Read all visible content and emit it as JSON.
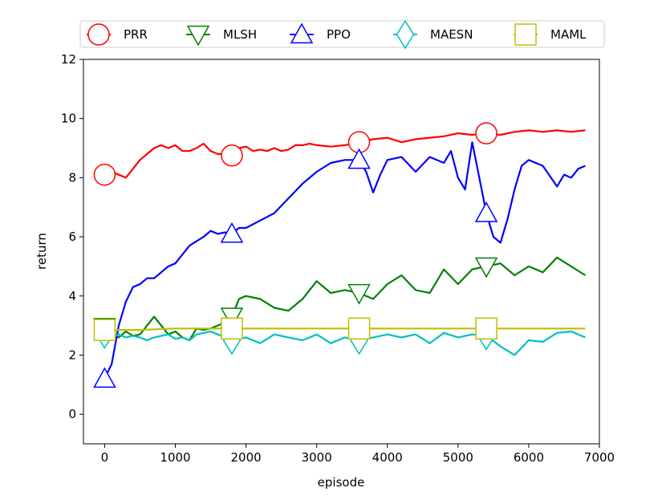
{
  "chart_data": {
    "type": "line",
    "title": "",
    "xlabel": "episode",
    "ylabel": "return",
    "xlim": [
      -300,
      7000
    ],
    "ylim": [
      -1,
      12
    ],
    "xticks": [
      0,
      1000,
      2000,
      3000,
      4000,
      5000,
      6000,
      7000
    ],
    "yticks": [
      0,
      2,
      4,
      6,
      8,
      10,
      12
    ],
    "grid": false,
    "legend_position": "top",
    "series": [
      {
        "name": "PRR",
        "color": "#ff0000",
        "marker": "circle",
        "marker_x": [
          0,
          1800,
          3600,
          5400
        ],
        "x": [
          0,
          100,
          200,
          300,
          400,
          500,
          600,
          700,
          800,
          900,
          1000,
          1100,
          1200,
          1300,
          1400,
          1500,
          1600,
          1700,
          1800,
          1900,
          2000,
          2100,
          2200,
          2300,
          2400,
          2500,
          2600,
          2700,
          2800,
          2900,
          3000,
          3200,
          3400,
          3600,
          3800,
          4000,
          4200,
          4400,
          4600,
          4800,
          5000,
          5200,
          5400,
          5600,
          5800,
          6000,
          6200,
          6400,
          6600,
          6800
        ],
        "y": [
          8.1,
          8.2,
          8.1,
          8.0,
          8.3,
          8.6,
          8.8,
          9.0,
          9.1,
          9.0,
          9.1,
          8.9,
          8.9,
          9.0,
          9.15,
          8.9,
          8.8,
          8.8,
          8.75,
          9.0,
          9.05,
          8.9,
          8.95,
          8.9,
          9.0,
          8.9,
          8.95,
          9.1,
          9.1,
          9.15,
          9.1,
          9.05,
          9.1,
          9.2,
          9.3,
          9.35,
          9.2,
          9.3,
          9.35,
          9.4,
          9.5,
          9.45,
          9.5,
          9.45,
          9.55,
          9.6,
          9.55,
          9.6,
          9.55,
          9.6
        ]
      },
      {
        "name": "MLSH",
        "color": "#008000",
        "marker": "triangle-down",
        "marker_x": [
          0,
          1800,
          3600,
          5400
        ],
        "x": [
          0,
          100,
          200,
          300,
          400,
          500,
          600,
          700,
          800,
          900,
          1000,
          1100,
          1200,
          1300,
          1400,
          1500,
          1600,
          1700,
          1800,
          1900,
          2000,
          2200,
          2400,
          2600,
          2800,
          3000,
          3200,
          3400,
          3600,
          3800,
          4000,
          4200,
          4400,
          4600,
          4800,
          5000,
          5200,
          5400,
          5600,
          5800,
          6000,
          6200,
          6400,
          6600,
          6800
        ],
        "y": [
          2.95,
          2.7,
          2.6,
          2.8,
          2.65,
          2.7,
          3.0,
          3.3,
          3.0,
          2.7,
          2.8,
          2.6,
          2.5,
          2.9,
          2.85,
          2.9,
          3.0,
          3.1,
          3.3,
          3.9,
          4.0,
          3.9,
          3.6,
          3.5,
          3.9,
          4.5,
          4.1,
          4.2,
          4.1,
          3.9,
          4.4,
          4.7,
          4.2,
          4.1,
          4.9,
          4.4,
          4.9,
          5.0,
          5.1,
          4.7,
          5.0,
          4.8,
          5.3,
          5.0,
          4.7
        ]
      },
      {
        "name": "PPO",
        "color": "#0000ff",
        "marker": "triangle-up",
        "marker_x": [
          0,
          1800,
          3600,
          5400
        ],
        "x": [
          0,
          100,
          200,
          300,
          400,
          500,
          600,
          700,
          800,
          900,
          1000,
          1100,
          1200,
          1300,
          1400,
          1500,
          1600,
          1700,
          1800,
          1900,
          2000,
          2200,
          2400,
          2600,
          2800,
          3000,
          3200,
          3400,
          3600,
          3700,
          3800,
          3900,
          4000,
          4200,
          4400,
          4600,
          4800,
          4900,
          5000,
          5100,
          5200,
          5300,
          5400,
          5500,
          5600,
          5700,
          5800,
          5900,
          6000,
          6200,
          6400,
          6500,
          6600,
          6700,
          6800
        ],
        "y": [
          1.2,
          1.7,
          3.0,
          3.8,
          4.3,
          4.4,
          4.6,
          4.6,
          4.8,
          5.0,
          5.1,
          5.4,
          5.7,
          5.85,
          6.0,
          6.2,
          6.1,
          6.15,
          6.1,
          6.3,
          6.3,
          6.55,
          6.8,
          7.3,
          7.8,
          8.2,
          8.5,
          8.6,
          8.6,
          8.2,
          7.5,
          8.1,
          8.6,
          8.7,
          8.2,
          8.7,
          8.5,
          8.9,
          8.0,
          7.6,
          9.2,
          8.0,
          6.8,
          6.0,
          5.8,
          6.6,
          7.6,
          8.4,
          8.6,
          8.4,
          7.7,
          8.1,
          8.0,
          8.3,
          8.4
        ]
      },
      {
        "name": "MAESN",
        "color": "#00bfbf",
        "marker": "diamond",
        "marker_x": [
          0,
          1800,
          3600,
          5400
        ],
        "x": [
          0,
          100,
          200,
          300,
          400,
          500,
          600,
          700,
          800,
          900,
          1000,
          1100,
          1200,
          1300,
          1400,
          1500,
          1600,
          1700,
          1800,
          2000,
          2200,
          2400,
          2600,
          2800,
          3000,
          3200,
          3400,
          3600,
          3800,
          4000,
          4200,
          4400,
          4600,
          4800,
          5000,
          5200,
          5400,
          5600,
          5800,
          6000,
          6200,
          6400,
          6600,
          6800
        ],
        "y": [
          2.7,
          2.6,
          2.7,
          2.6,
          2.65,
          2.6,
          2.5,
          2.6,
          2.65,
          2.7,
          2.55,
          2.6,
          2.5,
          2.7,
          2.75,
          2.8,
          2.7,
          2.6,
          2.5,
          2.6,
          2.4,
          2.7,
          2.6,
          2.5,
          2.7,
          2.4,
          2.6,
          2.5,
          2.6,
          2.7,
          2.6,
          2.7,
          2.4,
          2.75,
          2.6,
          2.7,
          2.65,
          2.3,
          2.0,
          2.5,
          2.45,
          2.75,
          2.8,
          2.6
        ]
      },
      {
        "name": "MAML",
        "color": "#bfbf00",
        "marker": "square",
        "marker_x": [
          0,
          1800,
          3600,
          5400
        ],
        "x": [
          0,
          500,
          1000,
          1500,
          2000,
          2500,
          3000,
          3500,
          4000,
          4500,
          5000,
          5500,
          6000,
          6500,
          6800
        ],
        "y": [
          2.85,
          2.85,
          2.9,
          2.9,
          2.9,
          2.9,
          2.9,
          2.9,
          2.9,
          2.9,
          2.9,
          2.9,
          2.9,
          2.9,
          2.9
        ]
      }
    ]
  }
}
